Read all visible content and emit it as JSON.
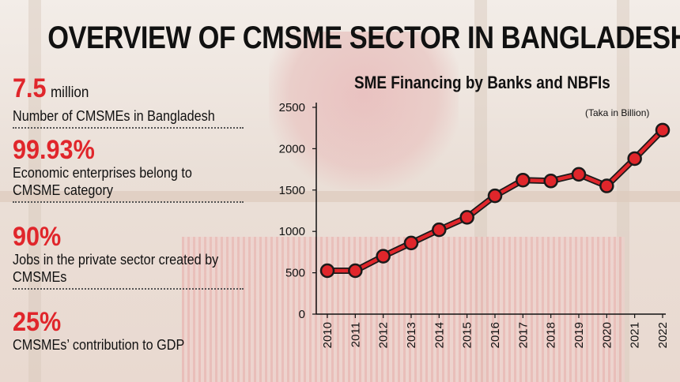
{
  "title": "OVERVIEW OF CMSME SECTOR IN BANGLADESH",
  "stats": [
    {
      "value": "7.5",
      "unit": "million",
      "desc": "Number of CMSMEs in Bangladesh"
    },
    {
      "value": "99.93%",
      "unit": "",
      "desc": "Economic enterprises belong to CMSME category"
    },
    {
      "value": "90%",
      "unit": "",
      "desc": "Jobs in the private sector created by CMSMEs"
    },
    {
      "value": "25%",
      "unit": "",
      "desc": "CMSMEs’ contribution to GDP"
    }
  ],
  "colors": {
    "accent": "#e0262b",
    "line": "#e0262b",
    "marker_edge": "#1a1a1a",
    "text": "#111111"
  },
  "chart_data": {
    "type": "line",
    "title": "SME Financing by Banks and NBFIs",
    "note": "(Taka in Billion)",
    "x": [
      "2010",
      "2011",
      "2012",
      "2013",
      "2014",
      "2015",
      "2016",
      "2017",
      "2018",
      "2019",
      "2020",
      "2021",
      "2022"
    ],
    "series": [
      {
        "values": [
          525,
          525,
          700,
          860,
          1020,
          1170,
          1430,
          1620,
          1610,
          1690,
          1550,
          1880,
          2225
        ]
      }
    ],
    "ylim": [
      0,
      2500
    ],
    "yticks": [
      0,
      500,
      1000,
      1500,
      2000,
      2500
    ],
    "grid": false
  }
}
